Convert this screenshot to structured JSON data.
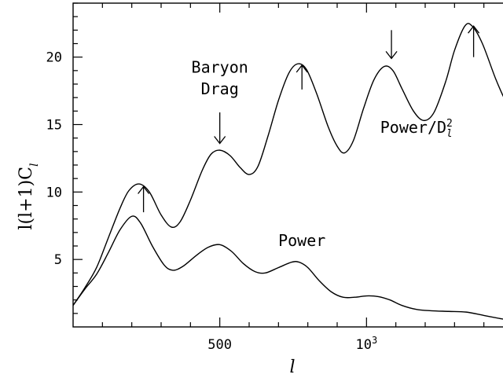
{
  "chart_data": {
    "type": "line",
    "xlabel": "l",
    "ylabel": "l(l+1)C",
    "ylabel_sub": "l",
    "xlim": [
      0,
      1500
    ],
    "ylim": [
      0,
      24
    ],
    "x_ticks": [
      {
        "value": 500,
        "label": "500",
        "sup": ""
      },
      {
        "value": 1000,
        "label": "10",
        "sup": "3"
      }
    ],
    "y_ticks": [
      {
        "value": 5,
        "label": "5"
      },
      {
        "value": 10,
        "label": "10"
      },
      {
        "value": 15,
        "label": "15"
      },
      {
        "value": 20,
        "label": "20"
      }
    ],
    "series": [
      {
        "name": "Power/D",
        "points": [
          [
            0,
            1.6
          ],
          [
            40,
            2.9
          ],
          [
            80,
            4.4
          ],
          [
            120,
            6.6
          ],
          [
            160,
            8.8
          ],
          [
            190,
            10.1
          ],
          [
            225,
            10.6
          ],
          [
            260,
            10.0
          ],
          [
            300,
            8.3
          ],
          [
            335,
            7.4
          ],
          [
            365,
            7.8
          ],
          [
            400,
            9.4
          ],
          [
            440,
            11.6
          ],
          [
            470,
            12.8
          ],
          [
            500,
            13.1
          ],
          [
            535,
            12.7
          ],
          [
            570,
            11.8
          ],
          [
            600,
            11.3
          ],
          [
            630,
            11.9
          ],
          [
            665,
            14.2
          ],
          [
            700,
            16.8
          ],
          [
            735,
            18.8
          ],
          [
            765,
            19.5
          ],
          [
            795,
            19.1
          ],
          [
            830,
            17.3
          ],
          [
            870,
            14.8
          ],
          [
            900,
            13.4
          ],
          [
            925,
            12.9
          ],
          [
            955,
            13.8
          ],
          [
            990,
            16.2
          ],
          [
            1025,
            18.3
          ],
          [
            1060,
            19.3
          ],
          [
            1090,
            19.0
          ],
          [
            1120,
            17.7
          ],
          [
            1160,
            16.0
          ],
          [
            1195,
            15.3
          ],
          [
            1230,
            15.9
          ],
          [
            1270,
            18.2
          ],
          [
            1300,
            20.5
          ],
          [
            1335,
            22.3
          ],
          [
            1360,
            22.3
          ],
          [
            1395,
            21.0
          ],
          [
            1440,
            18.4
          ],
          [
            1475,
            16.7
          ],
          [
            1500,
            15.9
          ]
        ]
      },
      {
        "name": "Power",
        "points": [
          [
            0,
            1.6
          ],
          [
            40,
            2.8
          ],
          [
            80,
            3.9
          ],
          [
            120,
            5.5
          ],
          [
            160,
            7.2
          ],
          [
            200,
            8.2
          ],
          [
            230,
            7.7
          ],
          [
            270,
            6.0
          ],
          [
            310,
            4.6
          ],
          [
            340,
            4.2
          ],
          [
            375,
            4.5
          ],
          [
            420,
            5.3
          ],
          [
            460,
            5.9
          ],
          [
            500,
            6.1
          ],
          [
            540,
            5.6
          ],
          [
            580,
            4.7
          ],
          [
            620,
            4.1
          ],
          [
            655,
            4.0
          ],
          [
            700,
            4.4
          ],
          [
            745,
            4.8
          ],
          [
            770,
            4.8
          ],
          [
            800,
            4.4
          ],
          [
            840,
            3.4
          ],
          [
            880,
            2.6
          ],
          [
            920,
            2.2
          ],
          [
            960,
            2.2
          ],
          [
            1000,
            2.3
          ],
          [
            1040,
            2.25
          ],
          [
            1080,
            2.0
          ],
          [
            1120,
            1.6
          ],
          [
            1170,
            1.3
          ],
          [
            1220,
            1.2
          ],
          [
            1280,
            1.15
          ],
          [
            1340,
            1.1
          ],
          [
            1400,
            0.85
          ],
          [
            1460,
            0.6
          ],
          [
            1500,
            0.45
          ]
        ]
      }
    ],
    "annotations": [
      {
        "text": "Baryon",
        "x": 500,
        "y": 18.85
      },
      {
        "text": "Drag",
        "x": 500,
        "y": 17.25
      },
      {
        "text": "Power/D",
        "sup": "2",
        "sub": "l",
        "x": 1170,
        "y": 14.4
      },
      {
        "text": "Power",
        "x": 780,
        "y": 6.0
      }
    ],
    "arrows": [
      {
        "direction": "up",
        "x": 240,
        "y_from": 8.5,
        "y_to": 10.4
      },
      {
        "direction": "down",
        "x": 500,
        "y_from": 15.9,
        "y_to": 13.6
      },
      {
        "direction": "up",
        "x": 780,
        "y_from": 17.6,
        "y_to": 19.4
      },
      {
        "direction": "down",
        "x": 1085,
        "y_from": 22.0,
        "y_to": 19.9
      },
      {
        "direction": "up",
        "x": 1365,
        "y_from": 20.0,
        "y_to": 22.3
      }
    ],
    "grid": false,
    "legend": "none"
  }
}
